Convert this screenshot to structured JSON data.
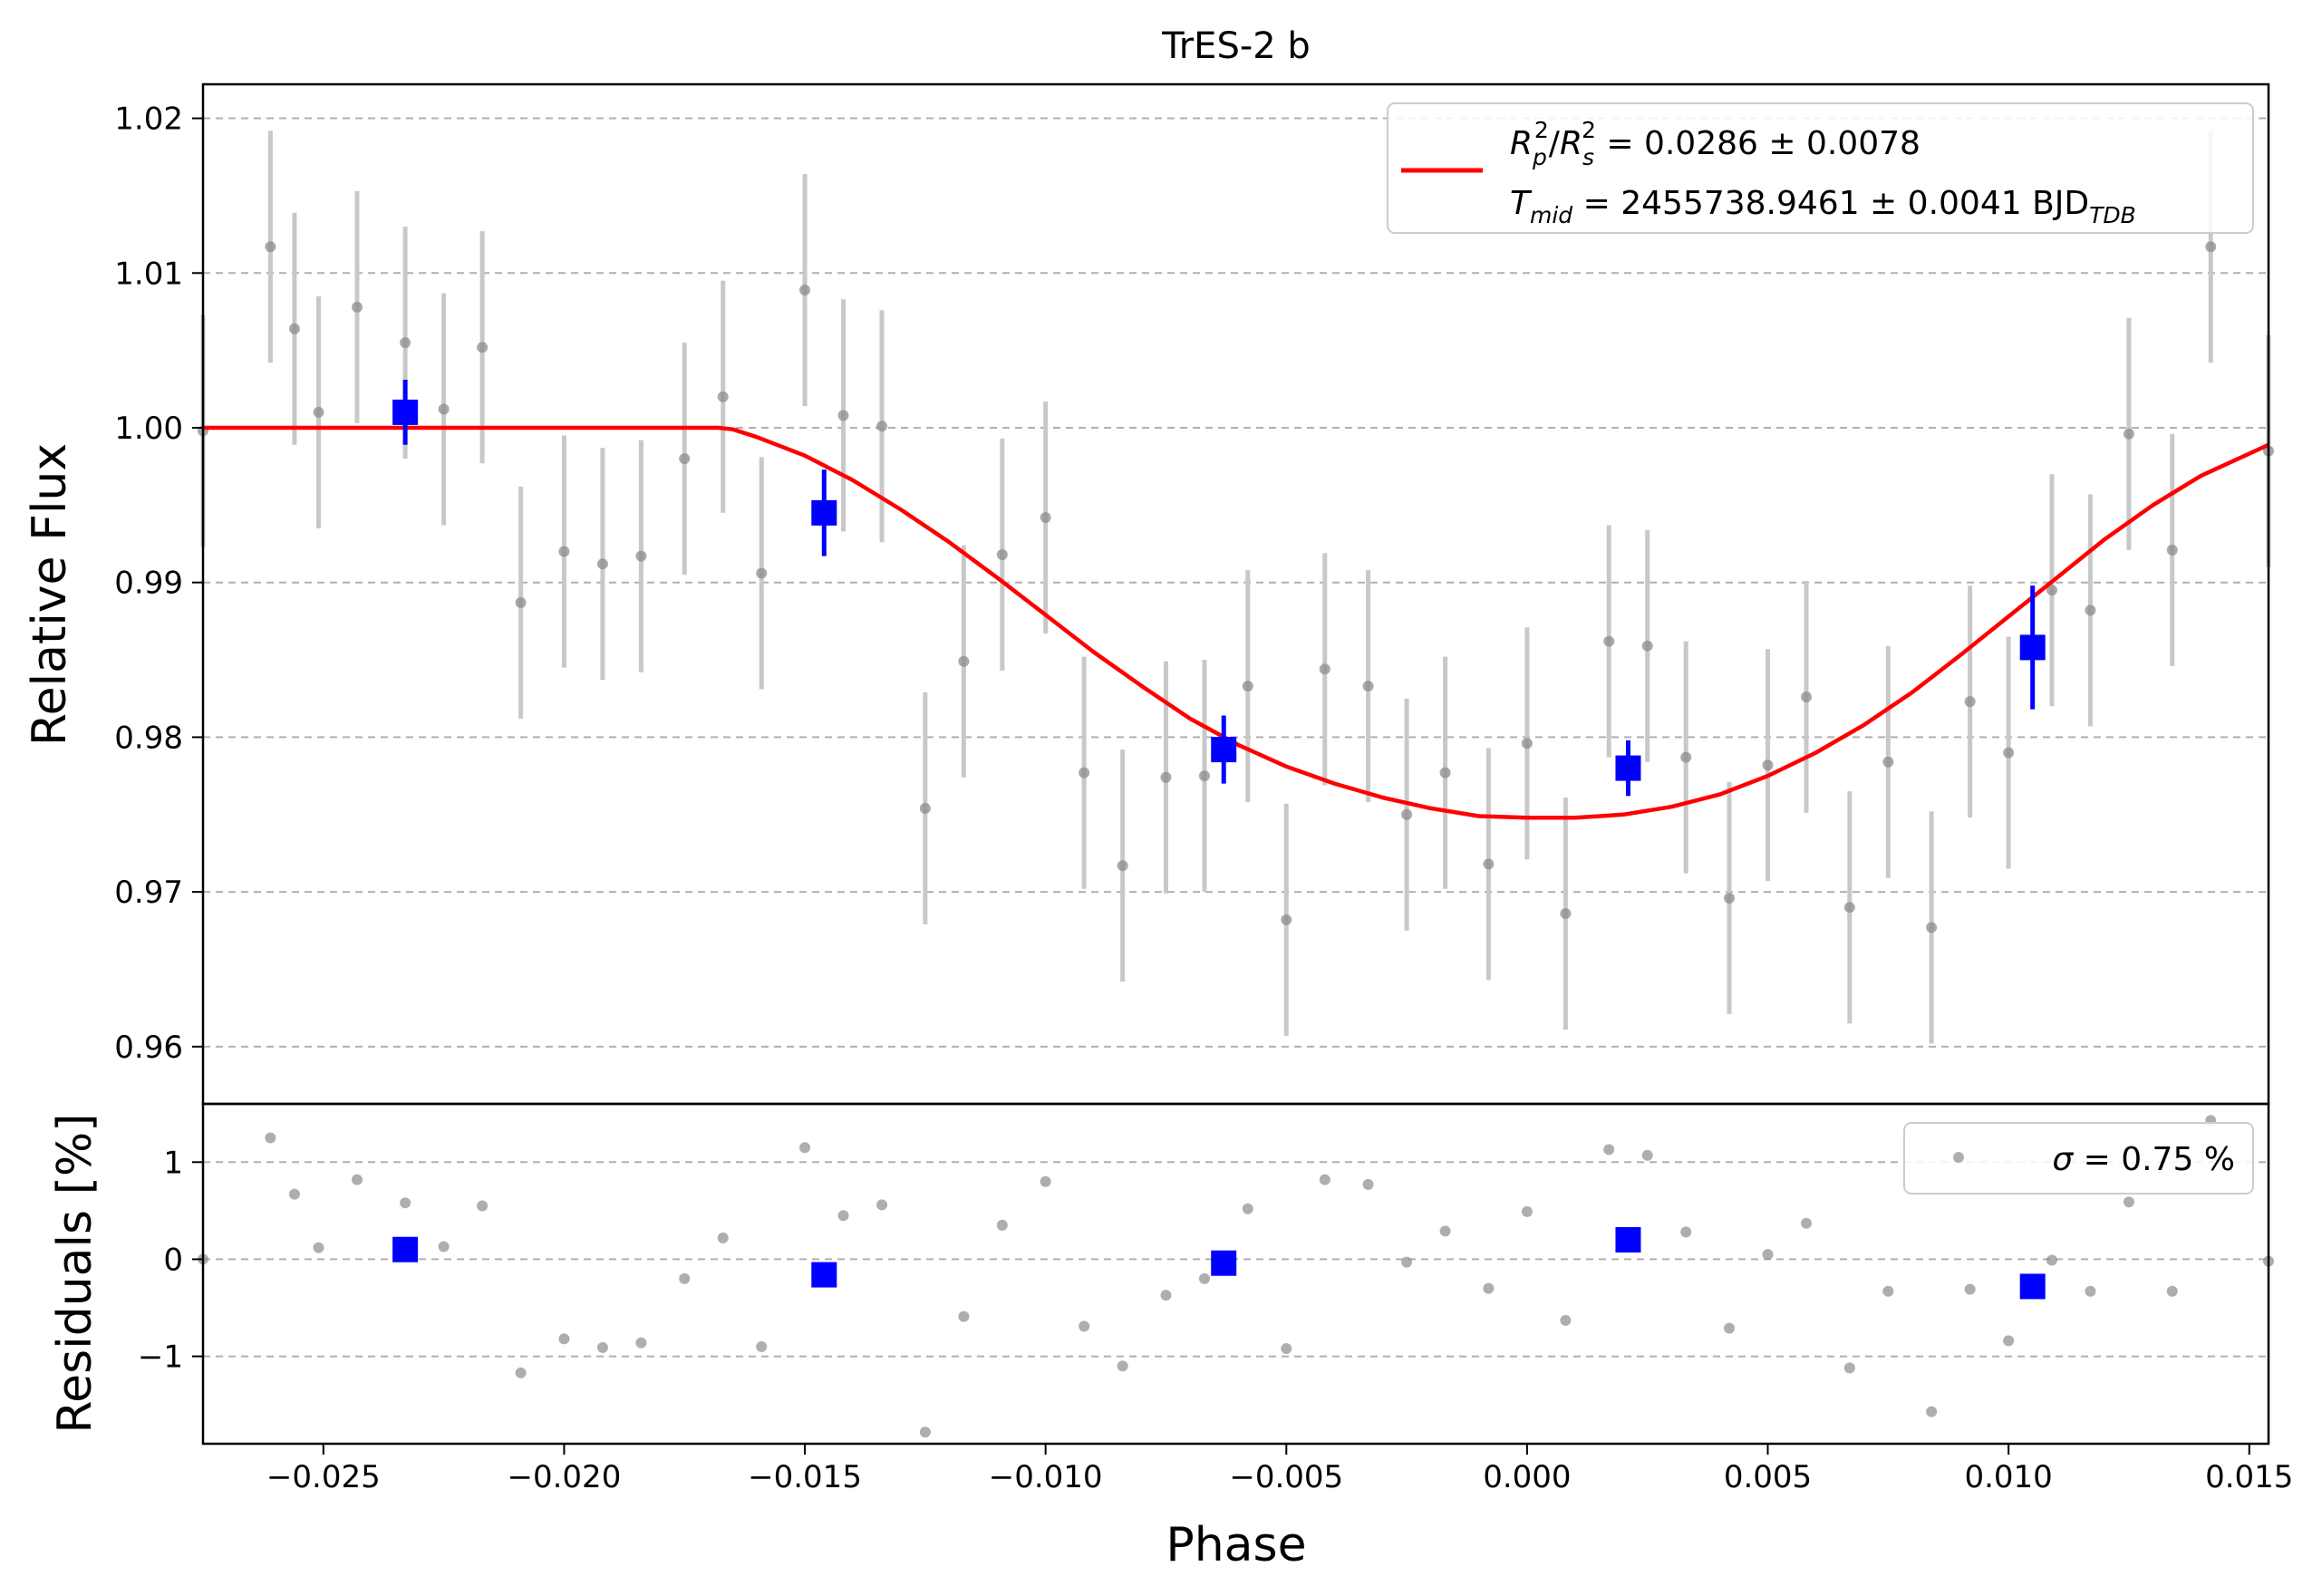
{
  "title": "TrES-2 b",
  "colors": {
    "model": "#ff0000",
    "binned": "#0000ff",
    "raw": "#8c8c8c",
    "raw_errorbar": "#c8c8c8",
    "grid": "#b0b0b0"
  },
  "top_panel": {
    "ylabel": "Relative Flux",
    "legend": {
      "line1": {
        "R": "R",
        "p": "p",
        "s": "s",
        "sup": "2",
        "slash": "/",
        "rest": " = 0.0286 ± 0.0078"
      },
      "line2": {
        "T": "T",
        "sub": "mid",
        "mid": " = 2455738.9461 ± 0.0041 BJD",
        "tdb": "TDB"
      }
    }
  },
  "bottom_panel": {
    "ylabel": "Residuals [%]",
    "legend": {
      "sigma": "σ",
      "text": " = 0.75 %"
    }
  },
  "xlabel": "Phase",
  "chart_data": {
    "type": "scatter",
    "title": "TrES-2 b",
    "xlabel": "Phase",
    "xlim": [
      -0.0275,
      0.0154
    ],
    "xticks": [
      -0.025,
      -0.02,
      -0.015,
      -0.01,
      -0.005,
      0.0,
      0.005,
      0.01,
      0.015
    ],
    "xtick_labels": [
      "−0.025",
      "−0.020",
      "−0.015",
      "−0.010",
      "−0.005",
      "0.000",
      "0.005",
      "0.010",
      "0.015"
    ],
    "grid": true,
    "panels": [
      {
        "name": "flux",
        "ylabel": "Relative Flux",
        "ylim": [
          0.9563,
          1.0222
        ],
        "yticks": [
          0.96,
          0.97,
          0.98,
          0.99,
          1.0,
          1.01,
          1.02
        ],
        "ytick_labels": [
          "0.96",
          "0.97",
          "0.98",
          "0.99",
          "1.00",
          "1.01",
          "1.02"
        ],
        "legend_position": "top-right",
        "series": [
          {
            "name": "R_p^2/R_s^2 = 0.0286 ± 0.0078, T_mid = 2455738.9461 ± 0.0041 BJD_TDB",
            "kind": "model_line",
            "x": [
              -0.0275,
              -0.0168,
              -0.0165,
              -0.016,
              -0.015,
              -0.014,
              -0.013,
              -0.012,
              -0.011,
              -0.01,
              -0.009,
              -0.008,
              -0.007,
              -0.006,
              -0.005,
              -0.004,
              -0.003,
              -0.002,
              -0.001,
              0.0,
              0.001,
              0.002,
              0.003,
              0.004,
              0.005,
              0.006,
              0.007,
              0.008,
              0.009,
              0.01,
              0.011,
              0.012,
              0.013,
              0.014,
              0.0154
            ],
            "y": [
              1.0,
              1.0,
              0.9999,
              0.9994,
              0.9982,
              0.9966,
              0.9947,
              0.9926,
              0.9903,
              0.9879,
              0.9855,
              0.9833,
              0.9812,
              0.9795,
              0.9781,
              0.977,
              0.9761,
              0.9754,
              0.9749,
              0.9748,
              0.9748,
              0.975,
              0.9755,
              0.9763,
              0.9775,
              0.979,
              0.9808,
              0.9829,
              0.9853,
              0.9878,
              0.9903,
              0.9928,
              0.995,
              0.9969,
              0.9989
            ]
          },
          {
            "name": "raw",
            "kind": "points_with_errorbars",
            "x": [
              -0.0275,
              -0.0261,
              -0.0256,
              -0.0251,
              -0.0243,
              -0.0233,
              -0.0225,
              -0.0217,
              -0.0209,
              -0.02,
              -0.0192,
              -0.0184,
              -0.0175,
              -0.0167,
              -0.0159,
              -0.015,
              -0.0142,
              -0.0134,
              -0.0125,
              -0.0117,
              -0.0109,
              -0.01,
              -0.0092,
              -0.0084,
              -0.0075,
              -0.0067,
              -0.0058,
              -0.005,
              -0.0042,
              -0.0033,
              -0.0025,
              -0.0017,
              -0.0008,
              0.0,
              0.0008,
              0.0017,
              0.0025,
              0.0033,
              0.0042,
              0.005,
              0.0058,
              0.0067,
              0.0075,
              0.0084,
              0.0092,
              0.01,
              0.0109,
              0.0117,
              0.0125,
              0.0134,
              0.0142,
              0.0154
            ],
            "y": [
              0.9998,
              1.0117,
              1.0064,
              1.001,
              1.0078,
              1.0055,
              1.0012,
              1.0052,
              0.9887,
              0.992,
              0.9912,
              0.9917,
              0.998,
              1.002,
              0.9906,
              1.0089,
              1.0008,
              1.0001,
              0.9754,
              0.9849,
              0.9918,
              0.9942,
              0.9777,
              0.9717,
              0.9774,
              0.9775,
              0.9833,
              0.9682,
              0.9844,
              0.9833,
              0.975,
              0.9777,
              0.9718,
              0.9796,
              0.9686,
              0.9862,
              0.9859,
              0.9787,
              0.9696,
              0.9782,
              0.9826,
              0.969,
              0.9784,
              0.9677,
              0.9823,
              0.979,
              0.9895,
              0.9882,
              0.9996,
              0.9921,
              1.0117,
              0.9985
            ],
            "yerr": 0.0075
          },
          {
            "name": "binned",
            "kind": "binned_points",
            "x": [
              -0.0233,
              -0.0146,
              -0.0063,
              0.0021,
              0.0105
            ],
            "y": [
              1.001,
              0.9945,
              0.9792,
              0.978,
              0.9858
            ],
            "yerr": [
              0.0021,
              0.0028,
              0.0022,
              0.0018,
              0.004
            ]
          }
        ]
      },
      {
        "name": "residuals",
        "ylabel": "Residuals [%]",
        "ylim": [
          -1.9,
          1.6
        ],
        "yticks": [
          -1,
          0,
          1
        ],
        "ytick_labels": [
          "−1",
          "0",
          "1"
        ],
        "legend_position": "top-right",
        "series": [
          {
            "name": "σ = 0.75 %",
            "kind": "points",
            "x": [
              -0.0275,
              -0.0261,
              -0.0256,
              -0.0251,
              -0.0243,
              -0.0233,
              -0.0225,
              -0.0217,
              -0.0209,
              -0.02,
              -0.0192,
              -0.0184,
              -0.0175,
              -0.0167,
              -0.0159,
              -0.015,
              -0.0142,
              -0.0134,
              -0.0125,
              -0.0117,
              -0.0109,
              -0.01,
              -0.0092,
              -0.0084,
              -0.0075,
              -0.0067,
              -0.0058,
              -0.005,
              -0.0042,
              -0.0033,
              -0.0025,
              -0.0017,
              -0.0008,
              0.0,
              0.0008,
              0.0017,
              0.0025,
              0.0033,
              0.0042,
              0.005,
              0.0058,
              0.0067,
              0.0075,
              0.0084,
              0.0092,
              0.01,
              0.0109,
              0.0117,
              0.0125,
              0.0134,
              0.0142,
              0.0154
            ],
            "y": [
              0.0,
              1.25,
              0.67,
              0.12,
              0.82,
              0.58,
              0.13,
              0.55,
              -1.17,
              -0.82,
              -0.91,
              -0.86,
              -0.2,
              0.22,
              -0.9,
              1.15,
              0.45,
              0.56,
              -1.78,
              -0.59,
              0.35,
              0.8,
              -0.69,
              -1.1,
              -0.37,
              -0.2,
              0.52,
              -0.92,
              0.82,
              0.77,
              -0.03,
              0.29,
              -0.3,
              0.49,
              -0.63,
              1.13,
              1.07,
              0.28,
              -0.71,
              0.05,
              0.37,
              -1.12,
              -0.33,
              -1.57,
              -0.31,
              -0.84,
              -0.01,
              -0.33,
              0.59,
              -0.33,
              1.43,
              -0.02
            ]
          },
          {
            "name": "binned",
            "kind": "binned_points",
            "x": [
              -0.0233,
              -0.0146,
              -0.0063,
              0.0021,
              0.0105
            ],
            "y": [
              0.1,
              -0.16,
              -0.04,
              0.2,
              -0.28
            ]
          }
        ]
      }
    ]
  }
}
